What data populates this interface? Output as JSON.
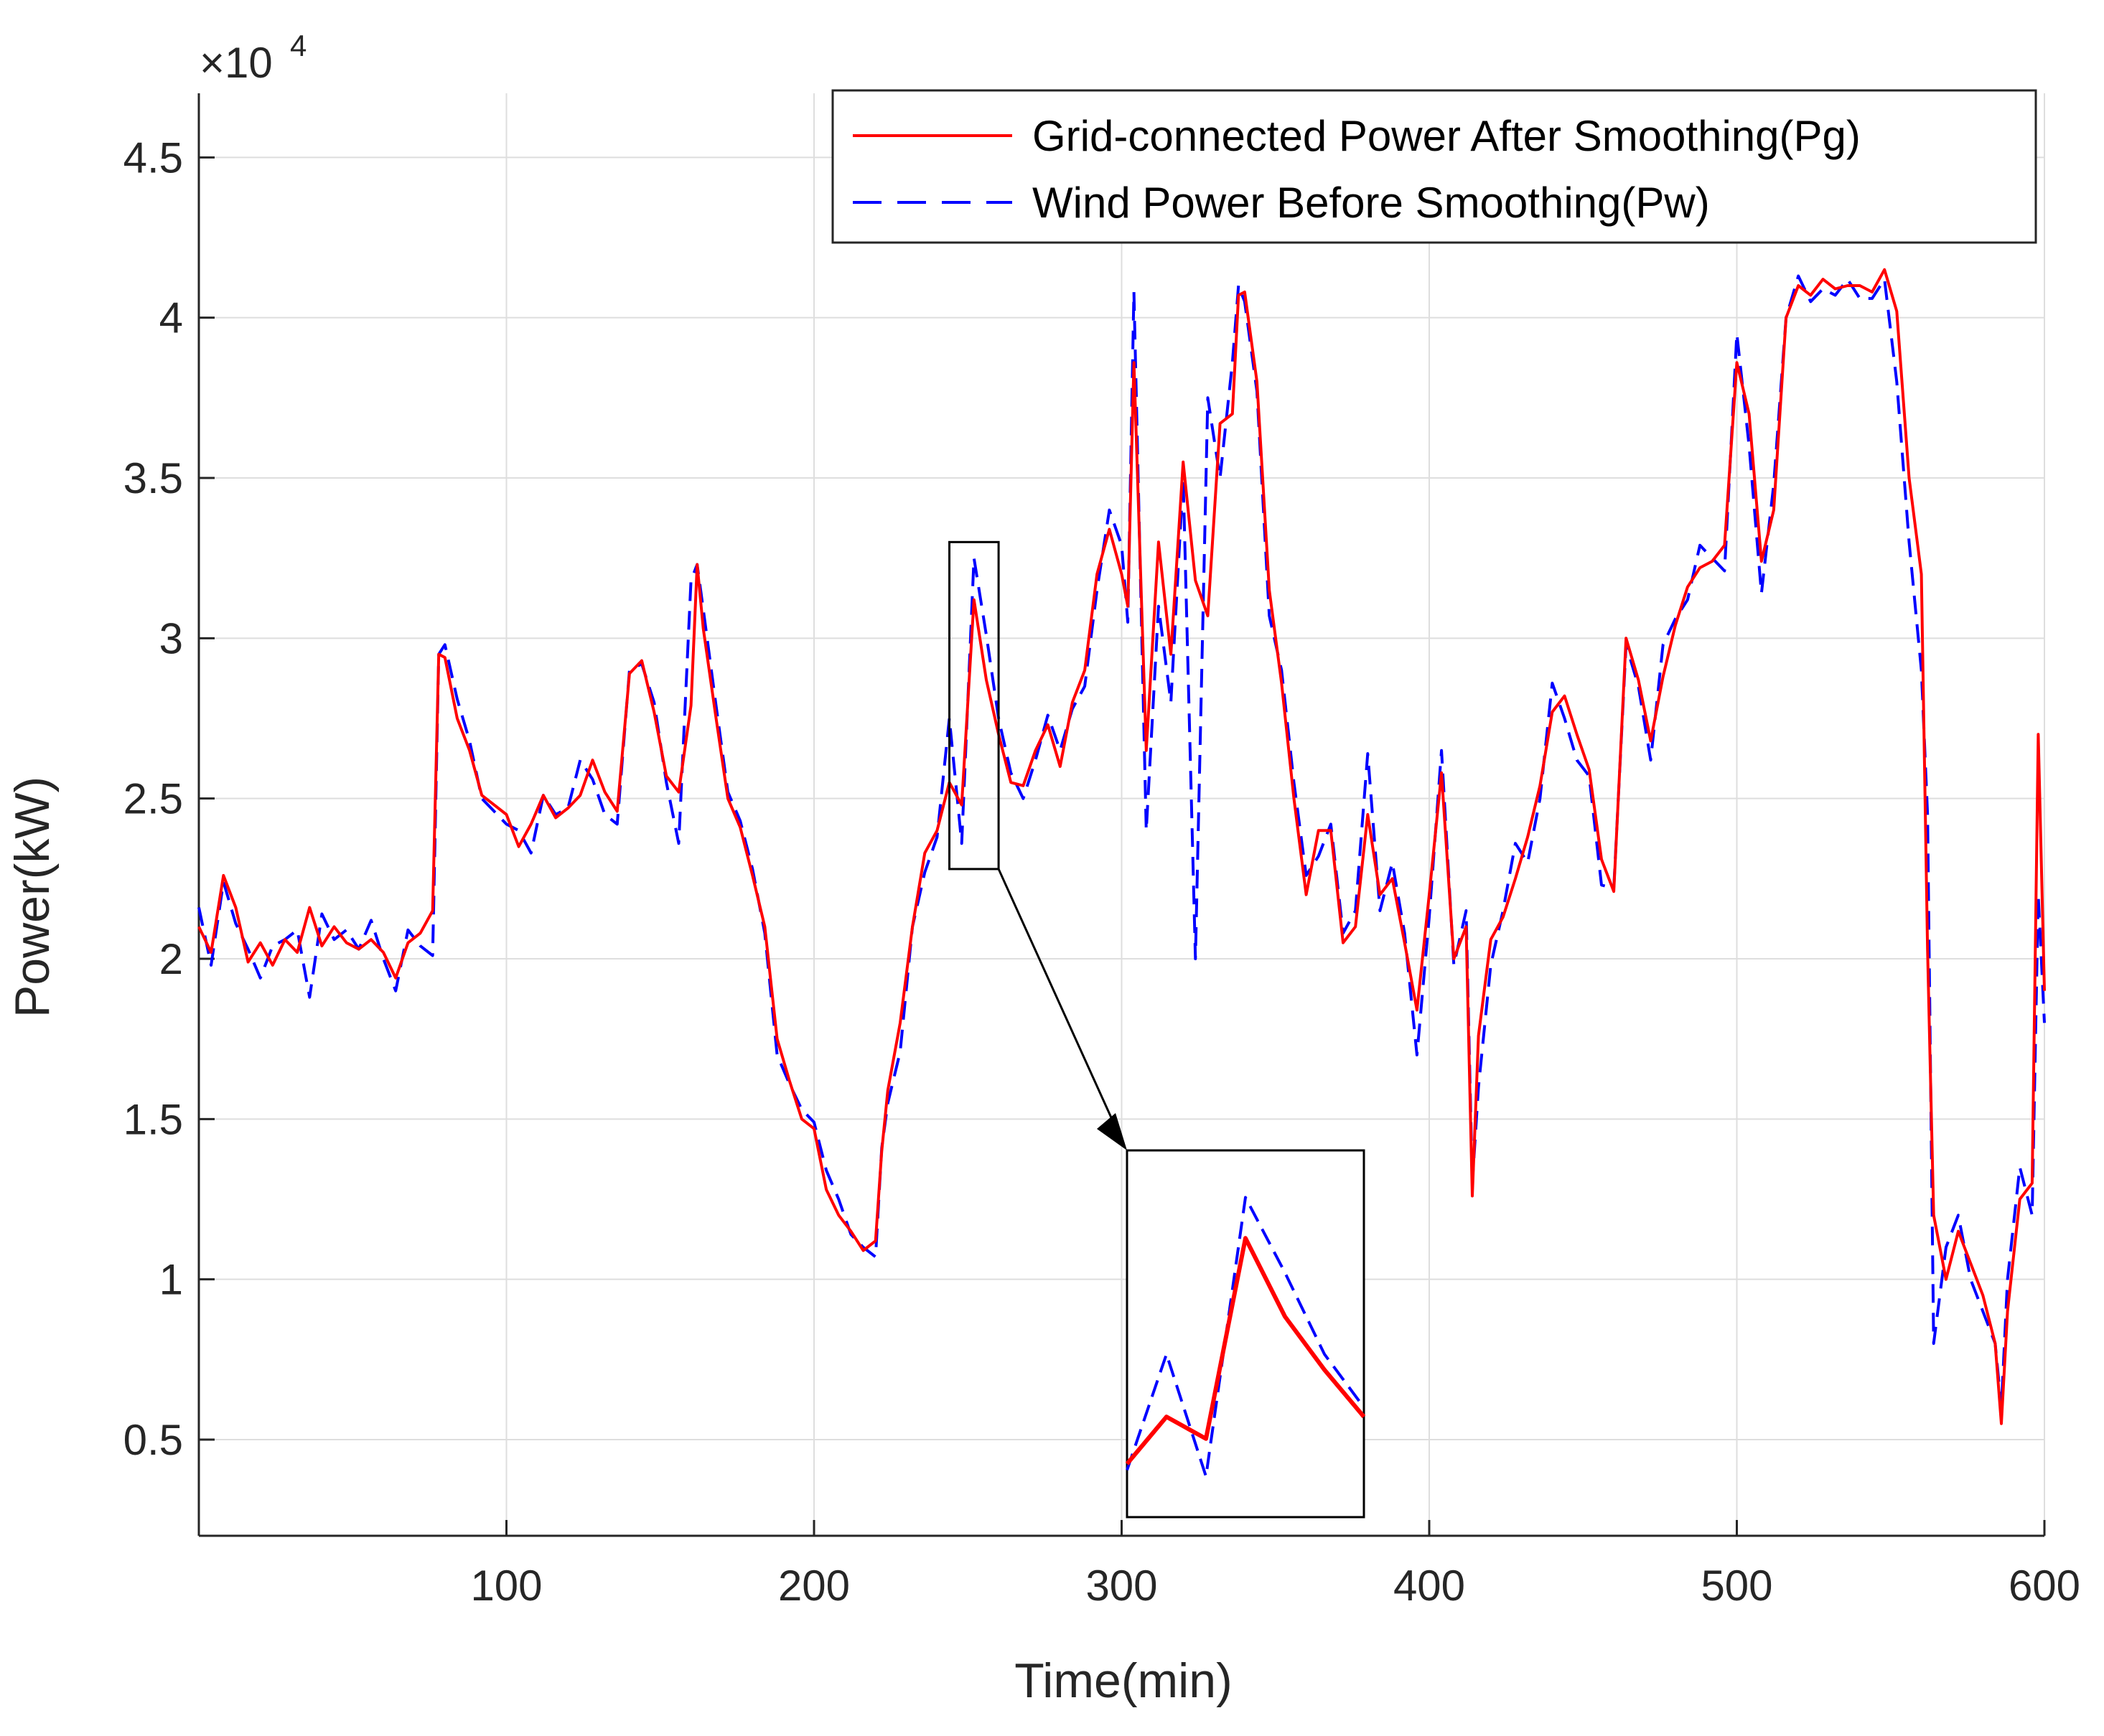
{
  "chart_data": {
    "type": "line",
    "xlabel": "Time(min)",
    "ylabel": "Power(kW)",
    "xlim": [
      0,
      600
    ],
    "ylim": [
      2000,
      47000
    ],
    "xticks": [
      100,
      200,
      300,
      400,
      500,
      600
    ],
    "yticks": [
      5000,
      10000,
      15000,
      20000,
      25000,
      30000,
      35000,
      40000,
      45000
    ],
    "ytick_labels": [
      "0.5",
      "1",
      "1.5",
      "2",
      "2.5",
      "3",
      "3.5",
      "4",
      "4.5"
    ],
    "y_exponent_label": "×10",
    "y_exponent_power": "4",
    "grid": true,
    "legend_position": "top-right",
    "x": [
      0,
      4,
      8,
      12,
      16,
      20,
      24,
      28,
      32,
      36,
      40,
      44,
      48,
      52,
      56,
      60,
      64,
      68,
      72,
      76,
      78,
      80,
      84,
      88,
      92,
      96,
      100,
      104,
      108,
      112,
      116,
      120,
      124,
      128,
      132,
      136,
      140,
      144,
      148,
      152,
      156,
      160,
      162,
      164,
      168,
      172,
      176,
      180,
      184,
      188,
      192,
      196,
      200,
      204,
      208,
      212,
      216,
      220,
      222,
      224,
      228,
      232,
      236,
      240,
      244,
      248,
      252,
      256,
      260,
      264,
      268,
      272,
      276,
      280,
      284,
      288,
      292,
      296,
      300,
      302,
      304,
      308,
      312,
      316,
      320,
      324,
      328,
      332,
      336,
      338,
      340,
      344,
      348,
      352,
      356,
      360,
      364,
      368,
      372,
      376,
      380,
      384,
      388,
      392,
      396,
      400,
      404,
      408,
      412,
      414,
      416,
      420,
      424,
      428,
      432,
      436,
      440,
      444,
      448,
      452,
      456,
      460,
      464,
      468,
      472,
      476,
      480,
      484,
      488,
      492,
      496,
      500,
      504,
      508,
      512,
      516,
      520,
      524,
      528,
      532,
      536,
      540,
      544,
      548,
      552,
      556,
      560,
      562,
      564,
      568,
      572,
      576,
      580,
      584,
      586,
      588,
      592,
      596,
      598,
      600
    ],
    "series": [
      {
        "name": "Grid-connected Power After Smoothing(Pg)",
        "color": "#ff0000",
        "style": "solid",
        "values": [
          21000,
          20200,
          22600,
          21600,
          19900,
          20500,
          19800,
          20600,
          20200,
          21600,
          20400,
          21000,
          20500,
          20300,
          20600,
          20200,
          19400,
          20500,
          20800,
          21500,
          29500,
          29400,
          27500,
          26500,
          25100,
          24800,
          24500,
          23500,
          24200,
          25100,
          24400,
          24700,
          25100,
          26200,
          25200,
          24600,
          28900,
          29300,
          27700,
          25700,
          25200,
          27900,
          32300,
          30300,
          27600,
          25000,
          24100,
          22600,
          21000,
          17500,
          16200,
          15000,
          14700,
          12800,
          12000,
          11500,
          10900,
          11200,
          14000,
          15900,
          18000,
          21000,
          23300,
          24000,
          25500,
          24800,
          31200,
          28700,
          27000,
          25500,
          25400,
          26500,
          27300,
          26000,
          28000,
          29000,
          32000,
          33400,
          32000,
          31000,
          38600,
          26500,
          33000,
          29500,
          35500,
          31800,
          30700,
          36700,
          37000,
          40700,
          40800,
          38000,
          31500,
          28600,
          25000,
          22000,
          24000,
          24000,
          20500,
          21000,
          24500,
          22000,
          22500,
          20500,
          18400,
          22000,
          25800,
          20000,
          21000,
          12600,
          17600,
          20600,
          21300,
          22500,
          23800,
          25400,
          27700,
          28200,
          27000,
          25900,
          23100,
          22100,
          30000,
          28700,
          26800,
          28800,
          30400,
          31600,
          32200,
          32400,
          32900,
          38600,
          37000,
          32400,
          34000,
          40000,
          41000,
          40700,
          41200,
          40900,
          41000,
          41000,
          40800,
          41500,
          40200,
          35000,
          32000,
          20300,
          12000,
          10000,
          11500,
          10500,
          9500,
          8000,
          5500,
          9000,
          12500,
          13000,
          27000,
          19000
        ]
      },
      {
        "name": "Wind Power Before Smoothing(Pw)",
        "color": "#0000ff",
        "style": "dash",
        "values": [
          21600,
          19800,
          22400,
          21100,
          20300,
          19400,
          20400,
          20600,
          20900,
          18800,
          21400,
          20600,
          20900,
          20300,
          21200,
          20000,
          19000,
          20900,
          20400,
          20100,
          29500,
          29800,
          28100,
          26800,
          25000,
          24600,
          24200,
          24000,
          23300,
          25100,
          24500,
          24700,
          26200,
          25600,
          24500,
          24200,
          29000,
          29200,
          28000,
          25500,
          23600,
          31800,
          32300,
          30900,
          28000,
          25200,
          24300,
          22800,
          20800,
          17000,
          16100,
          15300,
          14900,
          13400,
          12500,
          11400,
          11000,
          10700,
          14100,
          15500,
          17100,
          21000,
          22700,
          23800,
          27500,
          23600,
          32500,
          30100,
          27500,
          25800,
          25000,
          26200,
          27600,
          26500,
          27800,
          28500,
          31500,
          34000,
          32900,
          30500,
          40800,
          24000,
          31000,
          28000,
          35000,
          20000,
          37500,
          35000,
          38600,
          41000,
          40500,
          37700,
          30700,
          29000,
          25500,
          22600,
          23200,
          24200,
          20800,
          21500,
          26400,
          21500,
          23000,
          20800,
          17000,
          21300,
          26500,
          19800,
          21500,
          13000,
          16000,
          19800,
          21500,
          23600,
          23000,
          25000,
          28600,
          27500,
          26200,
          25700,
          22300,
          22200,
          29800,
          28500,
          26200,
          29800,
          30600,
          31200,
          32900,
          32500,
          32100,
          39500,
          36000,
          31400,
          34800,
          40000,
          41300,
          40500,
          40900,
          40700,
          41200,
          40600,
          40600,
          41200,
          38000,
          33000,
          29000,
          24500,
          8000,
          11000,
          12000,
          10000,
          9000,
          8000,
          6000,
          10000,
          13500,
          12000,
          22000,
          18000
        ]
      }
    ],
    "annotations": {
      "zoom_region_x": [
        244,
        260
      ],
      "zoom_region_y": [
        22800,
        33000
      ]
    }
  }
}
